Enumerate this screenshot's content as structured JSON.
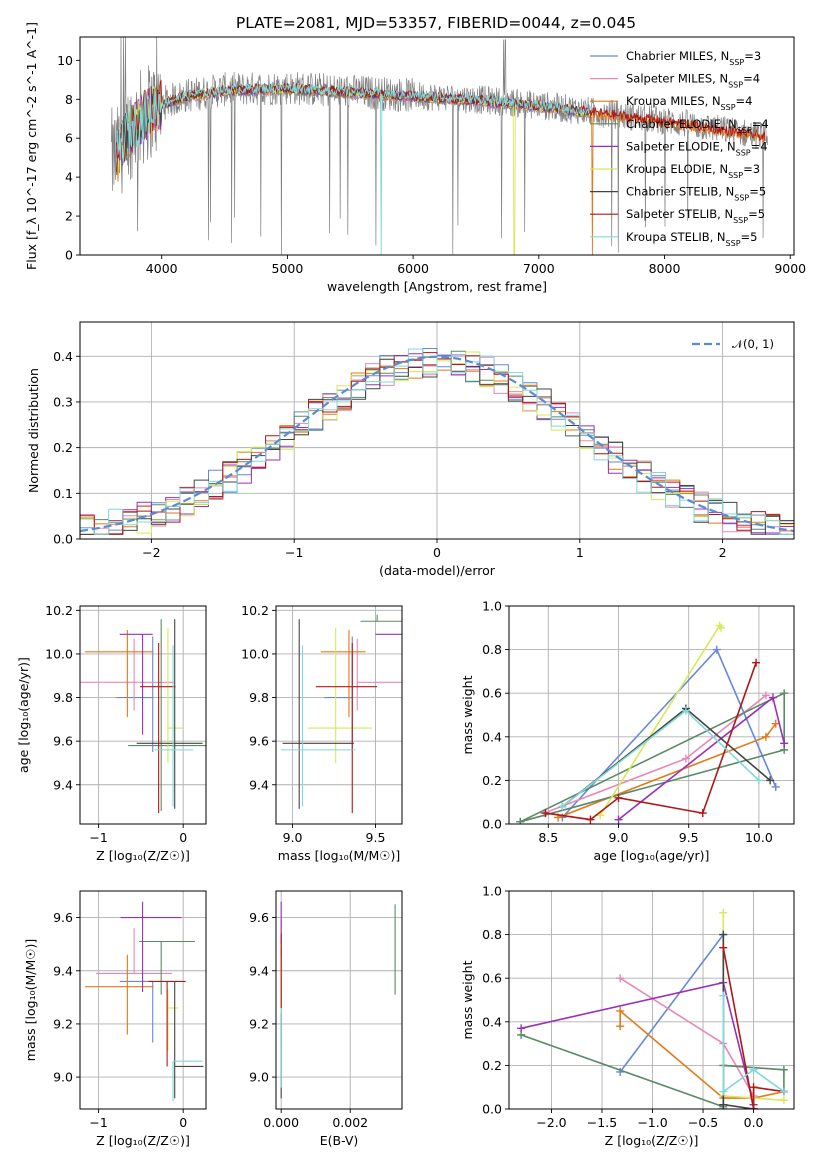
{
  "title": "PLATE=2081, MJD=53357, FIBERID=0044, z=0.045",
  "models": [
    {
      "name": "Chabrier MILES, N",
      "nssp": "3",
      "color": "#6688d8"
    },
    {
      "name": "Salpeter MILES, N",
      "nssp": "4",
      "color": "#e888b8"
    },
    {
      "name": "Kroupa MILES, N",
      "nssp": "4",
      "color": "#e07a1a"
    },
    {
      "name": "Chabrier ELODIE, N",
      "nssp": "4",
      "color": "#5a8a66"
    },
    {
      "name": "Salpeter ELODIE, N",
      "nssp": "4",
      "color": "#9a30b8"
    },
    {
      "name": "Kroupa ELODIE, N",
      "nssp": "3",
      "color": "#d8e858"
    },
    {
      "name": "Chabrier STELIB, N",
      "nssp": "5",
      "color": "#444444"
    },
    {
      "name": "Salpeter STELIB, N",
      "nssp": "5",
      "color": "#b01818"
    },
    {
      "name": "Kroupa STELIB, N",
      "nssp": "5",
      "color": "#80d8d8"
    }
  ],
  "legend_sub": "SSP",
  "colors": {
    "data": "#808080",
    "gauss": "#5b8bd6",
    "grid": "#b0b0b0"
  },
  "chart_data": [
    {
      "id": "spectrum",
      "type": "line",
      "xlabel": "wavelength [Angstrom, rest frame]",
      "ylabel": "Flux [f_λ 10^-17 erg cm^-2 s^-1 A^-1]",
      "xlim": [
        3350,
        9030
      ],
      "ylim": [
        0,
        11.2
      ],
      "xticks": [
        4000,
        5000,
        6000,
        7000,
        8000,
        9000
      ],
      "yticks": [
        0,
        2,
        4,
        6,
        8,
        10
      ],
      "continuum_x": [
        3640,
        3700,
        3800,
        3900,
        4000,
        4200,
        4500,
        5000,
        5500,
        6000,
        6500,
        7000,
        7500,
        8000,
        8500,
        8800
      ],
      "continuum_y": [
        5.0,
        6.0,
        6.8,
        7.4,
        7.8,
        8.2,
        8.5,
        8.6,
        8.4,
        8.2,
        8.0,
        7.7,
        7.3,
        6.9,
        6.4,
        6.1
      ],
      "data_range": [
        3600,
        8820
      ],
      "model_range": [
        3640,
        7420
      ],
      "grid": false,
      "legend": "top-right"
    },
    {
      "id": "residuals",
      "type": "bar",
      "xlabel": "(data-model)/error",
      "ylabel": "Normed distribution",
      "xlim": [
        -2.5,
        2.5
      ],
      "ylim": [
        0,
        0.475
      ],
      "xticks": [
        -2,
        -1,
        0,
        1,
        2
      ],
      "yticks": [
        0.0,
        0.1,
        0.2,
        0.3,
        0.4
      ],
      "bin_width": 0.1,
      "gauss_label": "𝒩(0, 1)",
      "grid": true,
      "legend": "top-right"
    },
    {
      "id": "age-vs-Z",
      "type": "scatter",
      "xlabel": "Z [log₁₀(Z/Z☉)]",
      "ylabel": "age  [log₁₀(age/yr)]",
      "xlim": [
        -1.22,
        0.27
      ],
      "ylim": [
        9.22,
        10.22
      ],
      "xticks": [
        -1,
        0
      ],
      "xtick_labels": [
        "−1",
        "0"
      ],
      "yticks": [
        9.4,
        9.6,
        9.8,
        10.0,
        10.2
      ],
      "grid": true,
      "points": [
        {
          "x": -0.36,
          "xerr": [
            0.43,
            0.0
          ],
          "y": 9.8,
          "yerr": [
            0.25,
            0.28
          ]
        },
        {
          "x": -0.58,
          "xerr": [
            0.67,
            0.48
          ],
          "y": 9.87,
          "yerr": [
            0.13,
            0.2
          ]
        },
        {
          "x": -0.66,
          "xerr": [
            0.5,
            0.31
          ],
          "y": 10.01,
          "yerr": [
            0.3,
            0.1
          ]
        },
        {
          "x": -0.26,
          "xerr": [
            0.39,
            0.69
          ],
          "y": 9.58,
          "yerr": [
            0.3,
            0.58
          ]
        },
        {
          "x": -0.48,
          "xerr": [
            0.27,
            0.12
          ],
          "y": 10.09,
          "yerr": [
            0.46,
            0.0
          ]
        },
        {
          "x": -0.18,
          "xerr": [
            0.0,
            0.18
          ],
          "y": 9.66,
          "yerr": [
            0.16,
            0.46
          ]
        },
        {
          "x": -0.1,
          "xerr": [
            0.45,
            0.33
          ],
          "y": 9.59,
          "yerr": [
            0.3,
            0.57
          ]
        },
        {
          "x": -0.29,
          "xerr": [
            0.22,
            0.2
          ],
          "y": 9.85,
          "yerr": [
            0.58,
            0.2
          ]
        },
        {
          "x": -0.12,
          "xerr": [
            0.22,
            0.24
          ],
          "y": 9.56,
          "yerr": [
            0.26,
            0.48
          ]
        }
      ]
    },
    {
      "id": "age-vs-mass",
      "type": "scatter",
      "xlabel": "mass [log₁₀(M/M☉)]",
      "ylabel": "",
      "xlim": [
        8.9,
        9.66
      ],
      "ylim": [
        9.22,
        10.22
      ],
      "xticks": [
        9.0,
        9.5
      ],
      "xtick_labels": [
        "9.0",
        "9.5"
      ],
      "yticks": [
        9.4,
        9.6,
        9.8,
        10.0,
        10.2
      ],
      "grid": true,
      "points": [
        {
          "x": 9.36,
          "xerr": [
            0.17,
            0.0
          ],
          "y": 9.8,
          "yerr": [
            0.25,
            0.28
          ]
        },
        {
          "x": 9.39,
          "xerr": [
            0.0,
            0.27
          ],
          "y": 9.87,
          "yerr": [
            0.13,
            0.2
          ]
        },
        {
          "x": 9.34,
          "xerr": [
            0.17,
            0.1
          ],
          "y": 10.01,
          "yerr": [
            0.3,
            0.1
          ]
        },
        {
          "x": 9.51,
          "xerr": [
            0.1,
            0.15
          ],
          "y": 10.15,
          "yerr": [
            0.0,
            0.03
          ]
        },
        {
          "x": 9.6,
          "xerr": [
            0.1,
            0.08
          ],
          "y": 10.09,
          "yerr": [
            0.0,
            0.0
          ]
        },
        {
          "x": 9.26,
          "xerr": [
            0.17,
            0.22
          ],
          "y": 9.66,
          "yerr": [
            0.16,
            0.46
          ]
        },
        {
          "x": 9.04,
          "xerr": [
            0.1,
            0.33
          ],
          "y": 9.59,
          "yerr": [
            0.3,
            0.57
          ]
        },
        {
          "x": 9.36,
          "xerr": [
            0.22,
            0.15
          ],
          "y": 9.85,
          "yerr": [
            0.58,
            0.2
          ]
        },
        {
          "x": 9.06,
          "xerr": [
            0.13,
            0.32
          ],
          "y": 9.56,
          "yerr": [
            0.26,
            0.48
          ]
        }
      ]
    },
    {
      "id": "mass-vs-Z",
      "type": "scatter",
      "xlabel": "Z [log₁₀(Z/Z☉)]",
      "ylabel": "mass [log₁₀(M/M☉)]",
      "xlim": [
        -1.22,
        0.27
      ],
      "ylim": [
        8.88,
        9.7
      ],
      "xticks": [
        -1,
        0
      ],
      "xtick_labels": [
        "−1",
        "0"
      ],
      "yticks": [
        9.0,
        9.2,
        9.4,
        9.6
      ],
      "grid": true,
      "points": [
        {
          "x": -0.36,
          "xerr": [
            0.39,
            0.0
          ],
          "y": 9.36,
          "yerr": [
            0.23,
            0.0
          ]
        },
        {
          "x": -0.58,
          "xerr": [
            0.45,
            0.45
          ],
          "y": 9.39,
          "yerr": [
            0.0,
            0.17
          ]
        },
        {
          "x": -0.66,
          "xerr": [
            0.5,
            0.31
          ],
          "y": 9.34,
          "yerr": [
            0.18,
            0.12
          ]
        },
        {
          "x": -0.26,
          "xerr": [
            0.26,
            0.4
          ],
          "y": 9.51,
          "yerr": [
            0.2,
            0.0
          ]
        },
        {
          "x": -0.48,
          "xerr": [
            0.26,
            0.46
          ],
          "y": 9.6,
          "yerr": [
            0.28,
            0.06
          ]
        },
        {
          "x": -0.18,
          "xerr": [
            0.0,
            0.12
          ],
          "y": 9.26,
          "yerr": [
            0.16,
            0.07
          ]
        },
        {
          "x": -0.1,
          "xerr": [
            0.0,
            0.34
          ],
          "y": 9.04,
          "yerr": [
            0.12,
            0.32
          ]
        },
        {
          "x": -0.19,
          "xerr": [
            0.22,
            0.22
          ],
          "y": 9.36,
          "yerr": [
            0.32,
            0.0
          ]
        },
        {
          "x": -0.12,
          "xerr": [
            0.0,
            0.35
          ],
          "y": 9.06,
          "yerr": [
            0.15,
            0.0
          ]
        }
      ]
    },
    {
      "id": "mass-vs-EBV",
      "type": "scatter",
      "xlabel": "E(B-V)",
      "ylabel": "",
      "xlim": [
        -0.00015,
        0.0035
      ],
      "ylim": [
        8.88,
        9.7
      ],
      "xticks": [
        0.0,
        0.002
      ],
      "xtick_labels": [
        "0.000",
        "0.002"
      ],
      "yticks": [
        9.0,
        9.2,
        9.4,
        9.6
      ],
      "grid": true,
      "points": [
        {
          "x": 0.0,
          "xerr": [
            0.0,
            0.0
          ],
          "y": 9.36,
          "yerr": [
            0.23,
            0.1
          ]
        },
        {
          "x": 0.0,
          "xerr": [
            0.0,
            0.0
          ],
          "y": 9.39,
          "yerr": [
            0.1,
            0.2
          ]
        },
        {
          "x": 0.0,
          "xerr": [
            0.0,
            0.0
          ],
          "y": 9.34,
          "yerr": [
            0.1,
            0.15
          ]
        },
        {
          "x": 0.0033,
          "xerr": [
            0.0,
            0.0
          ],
          "y": 9.51,
          "yerr": [
            0.2,
            0.14
          ]
        },
        {
          "x": 0.0,
          "xerr": [
            0.0,
            0.0
          ],
          "y": 9.6,
          "yerr": [
            0.1,
            0.06
          ]
        },
        {
          "x": 0.0,
          "xerr": [
            0.0,
            0.0
          ],
          "y": 9.26,
          "yerr": [
            0.16,
            0.2
          ]
        },
        {
          "x": 0.0,
          "xerr": [
            0.0,
            0.0
          ],
          "y": 9.04,
          "yerr": [
            0.12,
            0.2
          ]
        },
        {
          "x": 0.0,
          "xerr": [
            0.0,
            0.0
          ],
          "y": 9.36,
          "yerr": [
            0.1,
            0.18
          ]
        },
        {
          "x": 0.0,
          "xerr": [
            0.0,
            0.0
          ],
          "y": 9.06,
          "yerr": [
            0.1,
            0.2
          ]
        }
      ]
    },
    {
      "id": "weight-vs-age",
      "type": "line",
      "xlabel": "age  [log₁₀(age/yr)]",
      "ylabel": "mass weight",
      "xlim": [
        8.22,
        10.25
      ],
      "ylim": [
        0,
        1.0
      ],
      "xticks": [
        8.5,
        9.0,
        9.5,
        10.0
      ],
      "xtick_labels": [
        "8.5",
        "9.0",
        "9.5",
        "10.0"
      ],
      "yticks": [
        0.0,
        0.2,
        0.4,
        0.6,
        0.8,
        1.0
      ],
      "grid": true,
      "series": [
        {
          "model": 0,
          "x": [
            8.6,
            9.7,
            10.12
          ],
          "y": [
            0.03,
            0.8,
            0.17
          ]
        },
        {
          "model": 1,
          "x": [
            8.47,
            9.48,
            10.05
          ],
          "y": [
            0.05,
            0.3,
            0.59
          ]
        },
        {
          "model": 2,
          "x": [
            8.57,
            10.05,
            10.12
          ],
          "y": [
            0.03,
            0.4,
            0.46
          ]
        },
        {
          "model": 3,
          "x": [
            8.3,
            10.18,
            10.18,
            8.3
          ],
          "y": [
            0.01,
            0.34,
            0.6,
            0.01
          ]
        },
        {
          "model": 4,
          "x": [
            9.0,
            10.1,
            10.18
          ],
          "y": [
            0.02,
            0.58,
            0.37
          ]
        },
        {
          "model": 5,
          "x": [
            8.87,
            9.72,
            9.73
          ],
          "y": [
            0.04,
            0.91,
            0.9
          ]
        },
        {
          "model": 6,
          "x": [
            8.6,
            9.48,
            10.08
          ],
          "y": [
            0.08,
            0.53,
            0.2
          ]
        },
        {
          "model": 7,
          "x": [
            8.48,
            8.8,
            9.0,
            9.6,
            9.98
          ],
          "y": [
            0.05,
            0.02,
            0.12,
            0.05,
            0.74
          ]
        },
        {
          "model": 8,
          "x": [
            8.6,
            9.48,
            10.0
          ],
          "y": [
            0.08,
            0.52,
            0.2
          ]
        }
      ]
    },
    {
      "id": "weight-vs-Z",
      "type": "line",
      "xlabel": "Z [log₁₀(Z/Z☉)]",
      "ylabel": "mass weight",
      "xlim": [
        -2.42,
        0.4
      ],
      "ylim": [
        0,
        1.0
      ],
      "xticks": [
        -2.0,
        -1.5,
        -1.0,
        -0.5,
        0.0
      ],
      "xtick_labels": [
        "−2.0",
        "−1.5",
        "−1.0",
        "−0.5",
        "0.0"
      ],
      "yticks": [
        0.0,
        0.2,
        0.4,
        0.6,
        0.8,
        1.0
      ],
      "grid": true,
      "series": [
        {
          "model": 0,
          "x": [
            -1.32,
            -0.3,
            -0.3
          ],
          "y": [
            0.17,
            0.8,
            0.0
          ]
        },
        {
          "model": 1,
          "x": [
            -1.32,
            -0.3,
            0.0,
            0.0
          ],
          "y": [
            0.6,
            0.3,
            0.06,
            0.0
          ]
        },
        {
          "model": 2,
          "x": [
            -1.32,
            -1.32,
            -0.3,
            0.0,
            0.3
          ],
          "y": [
            0.38,
            0.45,
            0.05,
            0.05,
            0.08
          ]
        },
        {
          "model": 3,
          "x": [
            -2.3,
            -0.3,
            -0.3,
            0.3,
            0.3
          ],
          "y": [
            0.34,
            0.01,
            0.2,
            0.18,
            0.08
          ]
        },
        {
          "model": 4,
          "x": [
            -2.3,
            -0.3,
            0.0,
            0.0
          ],
          "y": [
            0.37,
            0.58,
            0.02,
            0.0
          ]
        },
        {
          "model": 5,
          "x": [
            -0.3,
            -0.3,
            0.0,
            0.3
          ],
          "y": [
            0.9,
            0.06,
            0.05,
            0.04
          ]
        },
        {
          "model": 6,
          "x": [
            -0.3,
            -0.3,
            0.0
          ],
          "y": [
            0.8,
            0.02,
            0.0
          ]
        },
        {
          "model": 7,
          "x": [
            -0.3,
            0.0,
            0.0,
            0.3
          ],
          "y": [
            0.74,
            0.0,
            0.1,
            0.08
          ]
        },
        {
          "model": 8,
          "x": [
            -0.3,
            -0.3,
            0.0,
            0.3
          ],
          "y": [
            0.52,
            0.08,
            0.18,
            0.08
          ]
        }
      ]
    }
  ]
}
